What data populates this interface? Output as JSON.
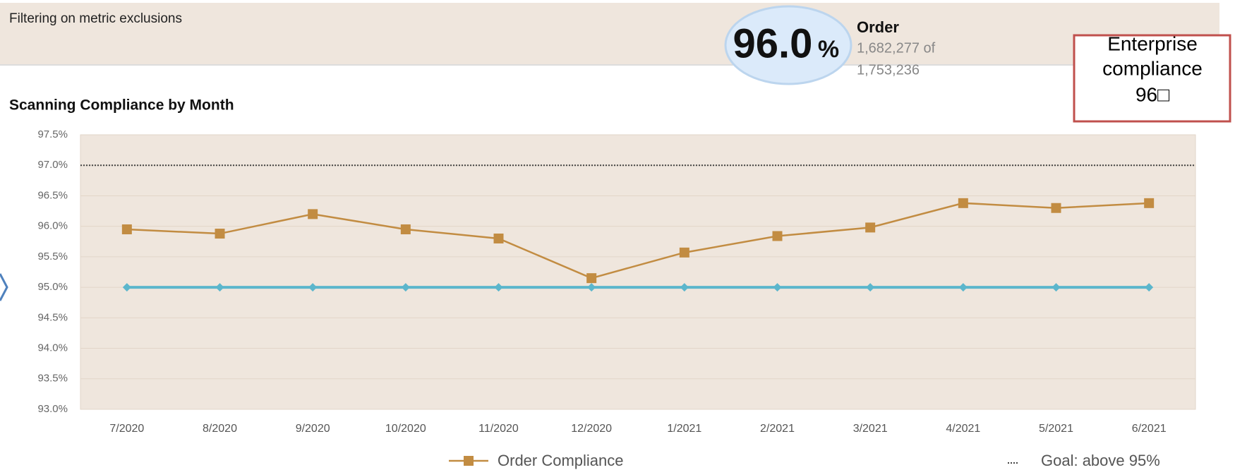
{
  "filter_text": "Filtering on metric exclusions",
  "kpi": {
    "value": "96.0",
    "unit": "%",
    "label": "Order",
    "detail_1": "1,682,277 of",
    "detail_2": "1,753,236"
  },
  "callout": {
    "lines": [
      "Enterprise",
      "compliance",
      "96□"
    ]
  },
  "chart_data": {
    "type": "line",
    "title": "Scanning Compliance by Month",
    "categories": [
      "7/2020",
      "8/2020",
      "9/2020",
      "10/2020",
      "11/2020",
      "12/2020",
      "1/2021",
      "2/2021",
      "3/2021",
      "4/2021",
      "5/2021",
      "6/2021"
    ],
    "series": [
      {
        "name": "Order Compliance",
        "color": "#c28c42",
        "marker": "square",
        "values": [
          95.95,
          95.88,
          96.2,
          95.95,
          95.8,
          95.15,
          95.57,
          95.84,
          95.98,
          96.38,
          96.3,
          96.38
        ]
      },
      {
        "color": "#5bb6cc",
        "marker": "diamond",
        "values": [
          95,
          95,
          95,
          95,
          95,
          95,
          95,
          95,
          95,
          95,
          95,
          95
        ]
      }
    ],
    "goal_line": {
      "label": "Goal: above 95%",
      "value": 97,
      "color": "#444444"
    },
    "ylim": [
      93,
      97.5
    ],
    "yticks": [
      {
        "value": 93,
        "label": "93.0%"
      },
      {
        "value": 93.5,
        "label": "93.5%"
      },
      {
        "value": 94,
        "label": "94.0%"
      },
      {
        "value": 94.5,
        "label": "94.5%"
      },
      {
        "value": 95,
        "label": "95.0%"
      },
      {
        "value": 95.5,
        "label": "95.5%"
      },
      {
        "value": 96,
        "label": "96.0%"
      },
      {
        "value": 96.5,
        "label": "96.5%"
      },
      {
        "value": 97,
        "label": "97.0%"
      },
      {
        "value": 97.5,
        "label": "97.5%"
      }
    ],
    "grid": true
  }
}
